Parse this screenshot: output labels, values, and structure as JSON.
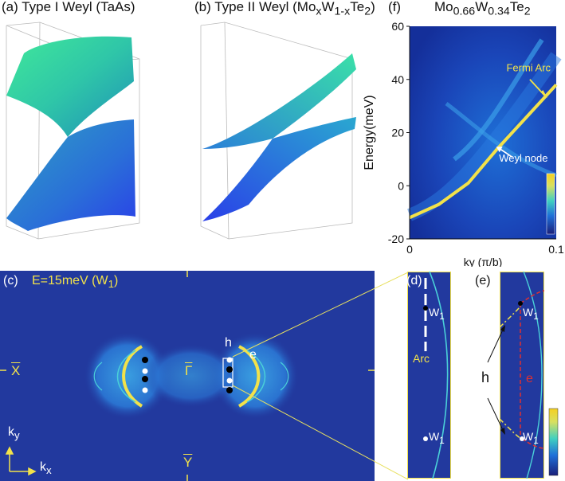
{
  "panels": {
    "a": {
      "label": "(a)",
      "title": "Type I Weyl (TaAs)"
    },
    "b": {
      "label": "(b)",
      "title_prefix": "Type II Weyl (Mo",
      "title_sub_x": "x",
      "title_mid": "W",
      "title_sub_1x": "1-x",
      "title_suffix": "Te",
      "title_sub_2": "2",
      "title_close": ")"
    },
    "f": {
      "label": "(f)",
      "title_main": "Mo",
      "sub1": "0.66",
      "title_mid": "W",
      "sub2": "0.34",
      "title_te": "Te",
      "sub3": "2"
    },
    "c": {
      "label": "(c)",
      "energy_label": "E=15meV (W",
      "energy_sub": "1",
      "energy_close": ")",
      "x_bar": "X",
      "gamma_bar": "Γ",
      "y_bar": "Y",
      "h_label": "h",
      "e_label": "e",
      "ky_label": "k",
      "ky_sub": "y",
      "kx_label": "k",
      "kx_sub": "x"
    },
    "d": {
      "label": "(d)",
      "w_top": "W",
      "w_top_sub": "1",
      "w_bot": "W",
      "w_bot_sub": "1",
      "arc": "Arc"
    },
    "e": {
      "label": "(e)",
      "w_top": "W",
      "w_top_sub": "1",
      "w_bot": "W",
      "w_bot_sub": "1",
      "h": "h",
      "e": "e"
    }
  },
  "chart_data": {
    "type": "heatmap",
    "title": "Mo0.66W0.34Te2",
    "xlabel": "ky (π/b)",
    "ylabel": "Energy(meV)",
    "xlim": [
      0,
      0.1
    ],
    "ylim": [
      -20,
      60
    ],
    "x_ticks": [
      "0",
      "0.1"
    ],
    "y_ticks": [
      "-20",
      "0",
      "20",
      "40",
      "60"
    ],
    "annotations": [
      "Fermi Arc",
      "Weyl node"
    ],
    "fermi_arc": {
      "x": [
        0,
        0.02,
        0.04,
        0.06,
        0.08,
        0.1
      ],
      "y": [
        -12,
        -7,
        1,
        14,
        26,
        38
      ]
    },
    "weyl_node": {
      "x": 0.058,
      "y": 15
    }
  }
}
